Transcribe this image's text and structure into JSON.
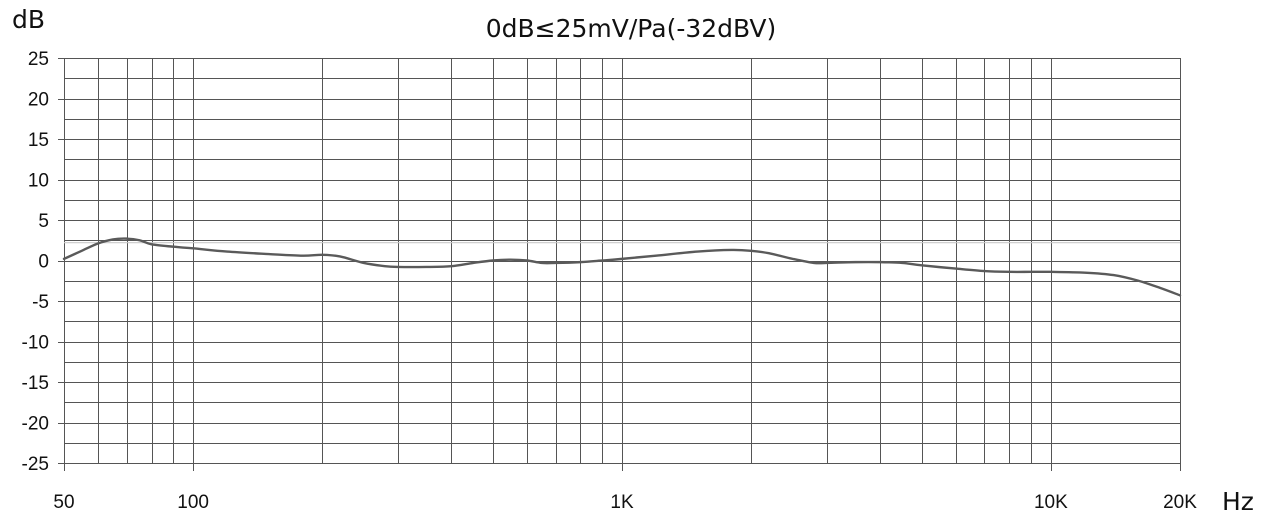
{
  "chart_data": {
    "type": "line",
    "title": "0dB≤25mV/Pa(-32dBV)",
    "ylabel": "dB",
    "xlabel": "Hz",
    "x_scale": "log",
    "xlim": [
      50,
      20000
    ],
    "ylim": [
      -25,
      25
    ],
    "y_ticks": [
      25,
      20,
      15,
      10,
      5,
      0,
      -5,
      -10,
      -15,
      -20,
      -25
    ],
    "y_tick_labels": [
      "25",
      "20",
      "15",
      "10",
      "5",
      "0",
      "-5",
      "-10",
      "-15",
      "-20",
      "-25"
    ],
    "x_ticks": [
      50,
      100,
      1000,
      10000,
      20000
    ],
    "x_tick_labels": [
      "50",
      "100",
      "1K",
      "10K",
      "20K"
    ],
    "grid": true,
    "reference_line_db": 2.2,
    "series": [
      {
        "x": [
          50,
          55,
          60,
          65,
          70,
          75,
          80,
          90,
          100,
          120,
          150,
          180,
          200,
          220,
          250,
          280,
          300,
          350,
          400,
          450,
          500,
          550,
          600,
          650,
          700,
          800,
          900,
          1000,
          1200,
          1500,
          1800,
          2000,
          2200,
          2500,
          2800,
          3000,
          3500,
          4000,
          4500,
          5000,
          6000,
          7000,
          8000,
          9000,
          10000,
          12000,
          14000,
          16000,
          18000,
          20000
        ],
        "y": [
          0.2,
          1.2,
          2.1,
          2.6,
          2.7,
          2.5,
          2.0,
          1.7,
          1.5,
          1.1,
          0.8,
          0.6,
          0.7,
          0.5,
          -0.3,
          -0.7,
          -0.8,
          -0.8,
          -0.7,
          -0.3,
          0.0,
          0.1,
          0.0,
          -0.3,
          -0.3,
          -0.2,
          0.0,
          0.2,
          0.6,
          1.1,
          1.3,
          1.2,
          0.9,
          0.2,
          -0.3,
          -0.3,
          -0.2,
          -0.2,
          -0.3,
          -0.6,
          -1.0,
          -1.3,
          -1.4,
          -1.4,
          -1.4,
          -1.5,
          -1.8,
          -2.5,
          -3.4,
          -4.3
        ],
        "color": "#5a5a5a"
      }
    ]
  }
}
